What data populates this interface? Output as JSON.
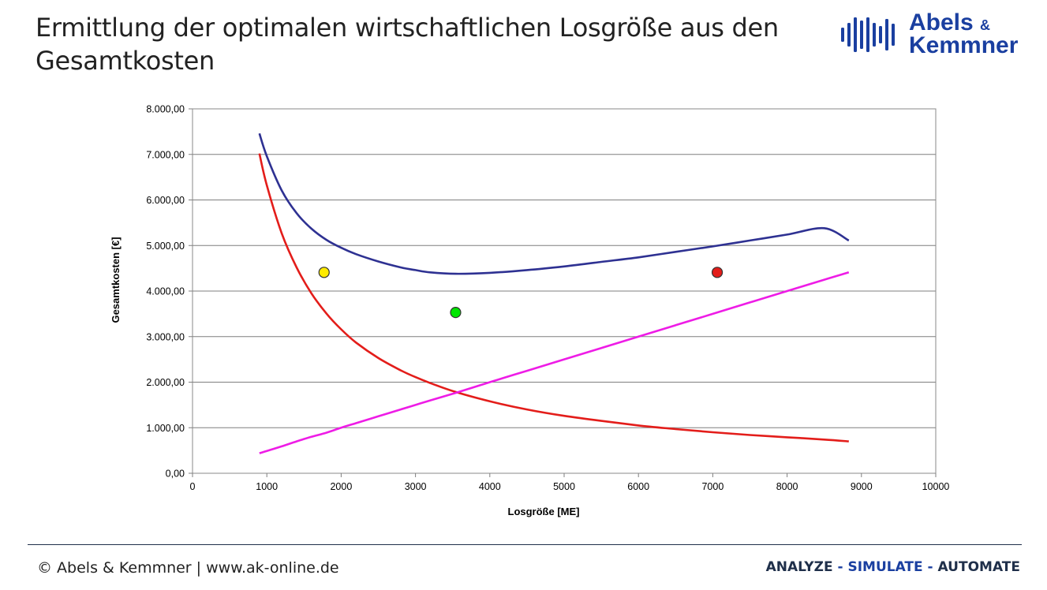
{
  "slide": {
    "title_line1": "Ermittlung der optimalen wirtschaftlichen Losgröße aus den",
    "title_line2": "Gesamtkosten"
  },
  "logo": {
    "line1": "Abels",
    "amp": "&",
    "line2": "Kemmner",
    "color": "#1a3fa0"
  },
  "footer": {
    "copyright": "© Abels & Kemmner | www.ak-online.de",
    "tagline": [
      {
        "text": "ANALYZE",
        "color": "#1f2f4a"
      },
      {
        "text": " - ",
        "color": "#1a3fa0"
      },
      {
        "text": "SIMULATE",
        "color": "#1a3fa0"
      },
      {
        "text": " - ",
        "color": "#1a3fa0"
      },
      {
        "text": "AUTOMATE",
        "color": "#1f2f4a"
      }
    ]
  },
  "chart_data": {
    "type": "line",
    "xlabel": "Losgröße [ME]",
    "ylabel": "Gesamtkosten [€]",
    "xlim": [
      0,
      10000
    ],
    "ylim": [
      0,
      8000
    ],
    "x_ticks": [
      "0",
      "1000",
      "2000",
      "3000",
      "4000",
      "5000",
      "6000",
      "7000",
      "8000",
      "9000",
      "10000"
    ],
    "y_ticks": [
      "0,00",
      "1.000,00",
      "2.000,00",
      "3.000,00",
      "4.000,00",
      "5.000,00",
      "6.000,00",
      "7.000,00",
      "8.000,00"
    ],
    "grid": "horizontal",
    "x": [
      900,
      1000,
      1200,
      1400,
      1600,
      1800,
      2000,
      2200,
      2500,
      2800,
      3000,
      3200,
      3540,
      4000,
      4500,
      5000,
      5500,
      6000,
      6500,
      7000,
      7500,
      8000,
      8500,
      8830
    ],
    "series": [
      {
        "color": "#2e3192",
        "values": [
          7460,
          6960,
          6210,
          5710,
          5370,
          5125,
          4950,
          4810,
          4650,
          4520,
          4460,
          4410,
          4380,
          4400,
          4460,
          4540,
          4640,
          4740,
          4860,
          4980,
          5110,
          5240,
          5380,
          5110
        ]
      },
      {
        "color": "#e31d1a",
        "values": [
          7020,
          6320,
          5270,
          4520,
          3950,
          3510,
          3160,
          2870,
          2530,
          2260,
          2110,
          1980,
          1785,
          1580,
          1400,
          1260,
          1150,
          1050,
          970,
          900,
          840,
          790,
          740,
          700
        ]
      },
      {
        "color": "#ee1ce6",
        "values": [
          440,
          490,
          590,
          700,
          800,
          890,
          1000,
          1100,
          1250,
          1400,
          1500,
          1600,
          1765,
          2000,
          2250,
          2500,
          2750,
          3000,
          3250,
          3500,
          3750,
          4000,
          4250,
          4410
        ]
      }
    ],
    "markers": [
      {
        "x": 1770,
        "y": 4410,
        "color": "#ffeb00"
      },
      {
        "x": 3540,
        "y": 3530,
        "color": "#00e600"
      },
      {
        "x": 7060,
        "y": 4410,
        "color": "#e31d1a"
      }
    ]
  }
}
